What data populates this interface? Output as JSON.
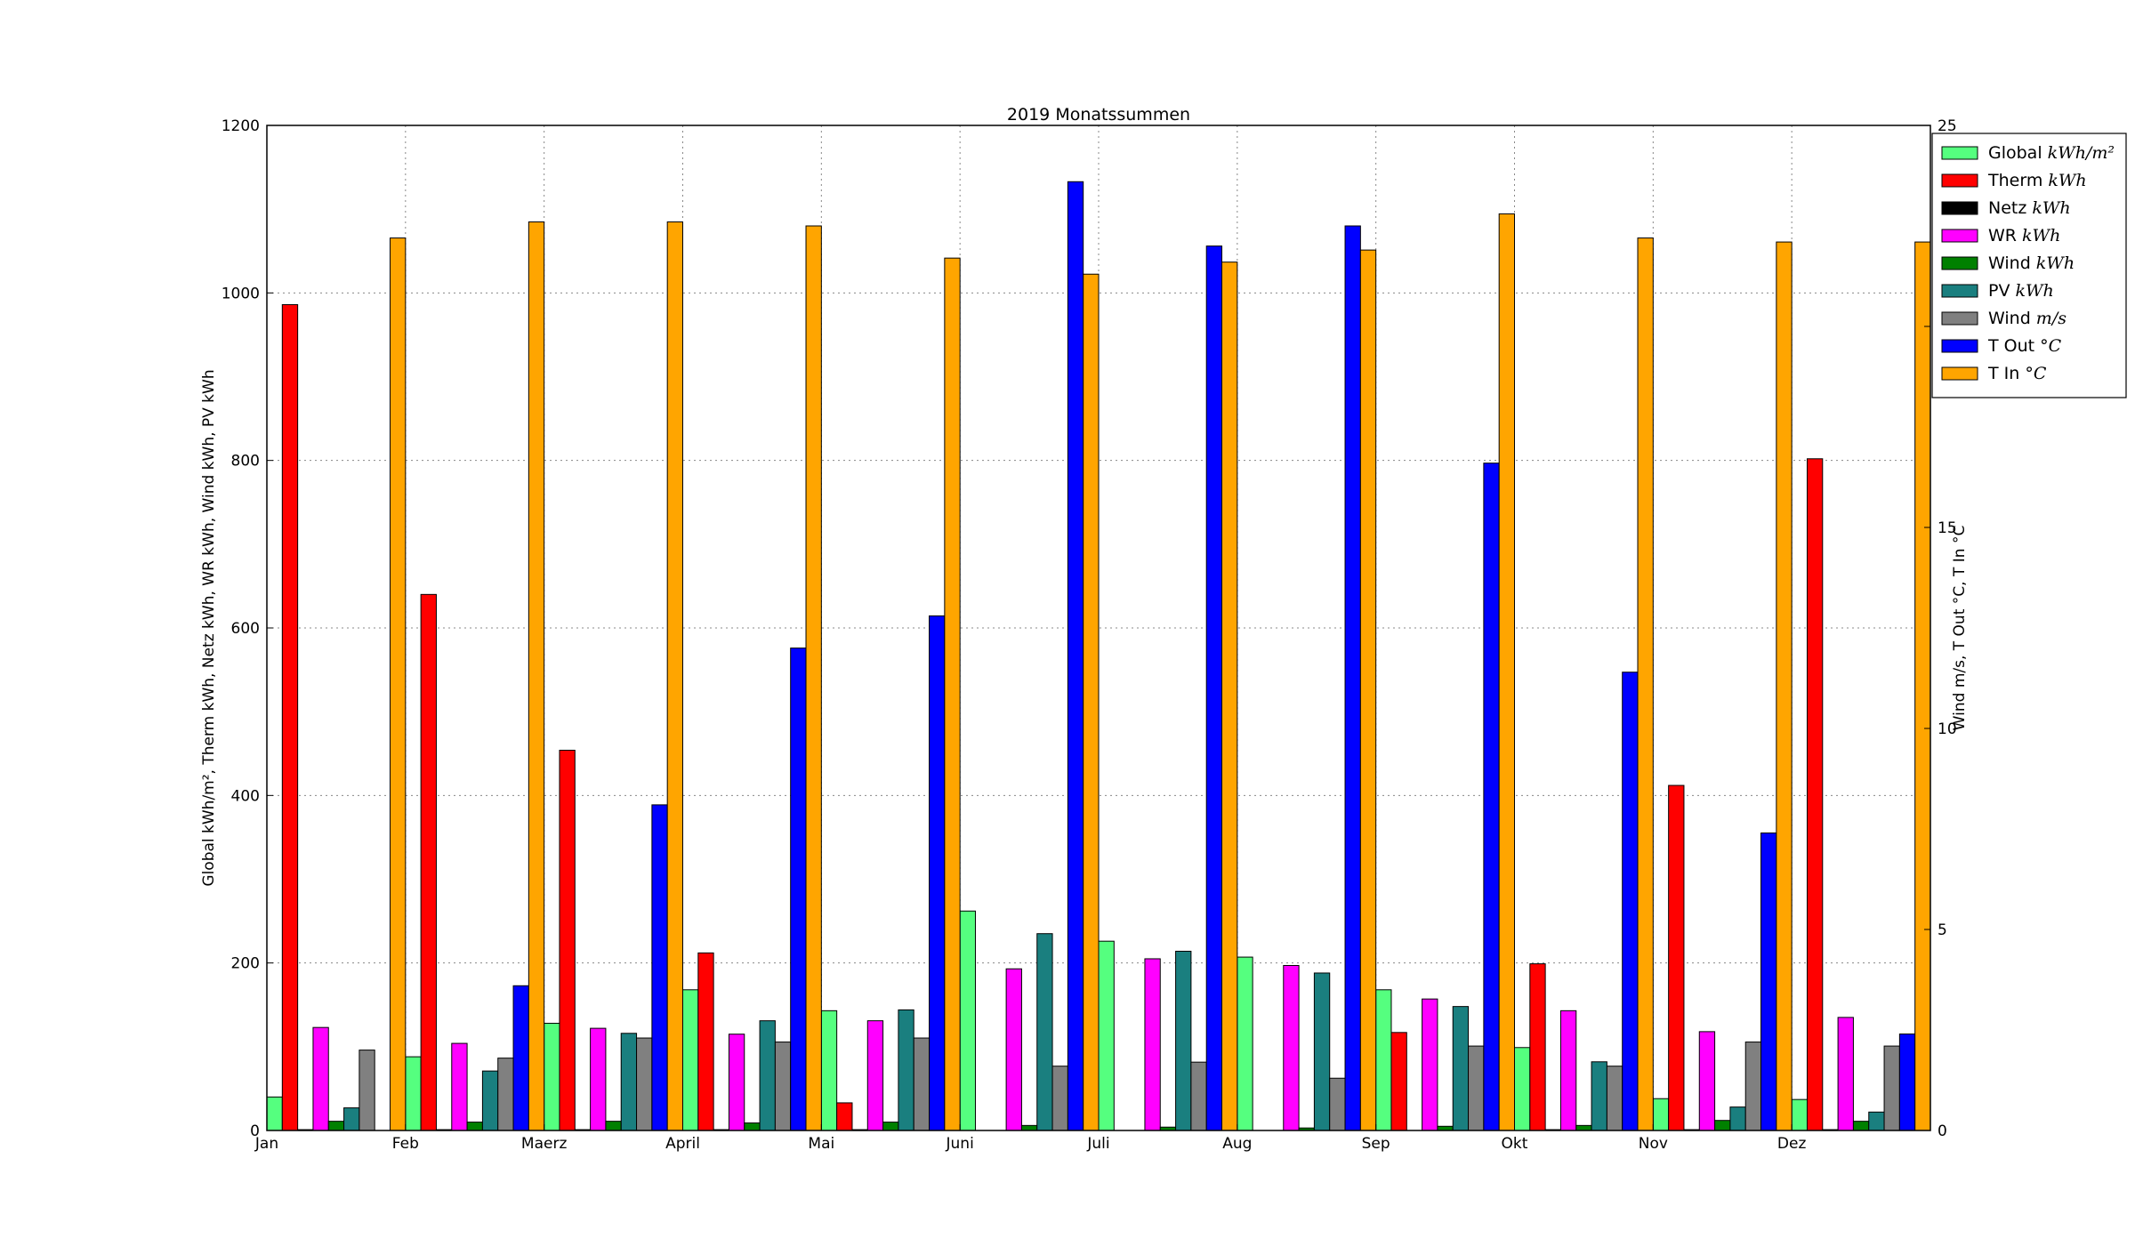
{
  "chart_data": {
    "type": "bar",
    "title": "2019 Monatssummen",
    "ylabel_left": "Global kWh/m², Therm kWh, Netz kWh, WR kWh, Wind kWh, PV kWh",
    "ylabel_right": "Wind m/s, T Out °C, T In °C",
    "categories": [
      "Jan",
      "Feb",
      "Maerz",
      "April",
      "Mai",
      "Juni",
      "Juli",
      "Aug",
      "Sep",
      "Okt",
      "Nov",
      "Dez"
    ],
    "ylim_left": [
      0,
      1200
    ],
    "ylim_right": [
      0,
      25
    ],
    "yticks_left": [
      "0",
      "200",
      "400",
      "600",
      "800",
      "1000",
      "1200"
    ],
    "yticks_right": [
      "0",
      "5",
      "10",
      "15",
      "20",
      "25"
    ],
    "grid": true,
    "legend_position": "top-right",
    "series": [
      {
        "name": "Global",
        "unit": "kWh/m²",
        "axis": "left",
        "color": "#55ff7f",
        "values": [
          40,
          88,
          128,
          168,
          143,
          262,
          226,
          207,
          168,
          99,
          38,
          37
        ]
      },
      {
        "name": "Therm",
        "unit": "kWh",
        "axis": "left",
        "color": "#ff0000",
        "values": [
          986,
          640,
          454,
          212,
          33,
          0,
          0,
          0,
          117,
          199,
          412,
          802
        ]
      },
      {
        "name": "Netz",
        "unit": "kWh",
        "axis": "left",
        "color": "#000000",
        "values": [
          1,
          1,
          1,
          1,
          1,
          0,
          0,
          0,
          0,
          1,
          1,
          1
        ]
      },
      {
        "name": "WR",
        "unit": "kWh",
        "axis": "left",
        "color": "#ff00ff",
        "values": [
          123,
          104,
          122,
          115,
          131,
          193,
          205,
          197,
          157,
          143,
          118,
          135
        ]
      },
      {
        "name": "Wind",
        "unit": "kWh",
        "axis": "left",
        "color": "#008000",
        "values": [
          11,
          10,
          11,
          9,
          10,
          6,
          4,
          3,
          5,
          6,
          12,
          11
        ]
      },
      {
        "name": "PV",
        "unit": "kWh",
        "axis": "left",
        "color": "#1a7f7f",
        "values": [
          27,
          71,
          116,
          131,
          144,
          235,
          214,
          188,
          148,
          82,
          28,
          22
        ]
      },
      {
        "name": "Wind",
        "unit": "m/s",
        "axis": "right",
        "color": "#808080",
        "values": [
          2.0,
          1.8,
          2.3,
          2.2,
          2.3,
          1.6,
          1.7,
          1.3,
          2.1,
          1.6,
          2.2,
          2.1
        ]
      },
      {
        "name": "T Out",
        "unit": "°C",
        "axis": "right",
        "color": "#0000ff",
        "values": [
          0.0,
          3.6,
          8.1,
          12.0,
          12.8,
          23.6,
          22.0,
          22.5,
          16.6,
          11.4,
          7.4,
          2.4
        ]
      },
      {
        "name": "T In",
        "unit": "°C",
        "axis": "right",
        "color": "#ffa500",
        "values": [
          22.2,
          22.6,
          22.6,
          22.5,
          21.7,
          21.3,
          21.6,
          21.9,
          22.8,
          22.2,
          22.1,
          22.1
        ]
      }
    ],
    "legend": [
      {
        "name": "Global",
        "unit": "kWh/m²"
      },
      {
        "name": "Therm",
        "unit": "kWh"
      },
      {
        "name": "Netz",
        "unit": "kWh"
      },
      {
        "name": "WR",
        "unit": "kWh"
      },
      {
        "name": "Wind",
        "unit": "kWh"
      },
      {
        "name": "PV",
        "unit": "kWh"
      },
      {
        "name": "Wind",
        "unit": "m/s"
      },
      {
        "name": "T Out",
        "unit": "°C"
      },
      {
        "name": "T In",
        "unit": "°C"
      }
    ]
  }
}
